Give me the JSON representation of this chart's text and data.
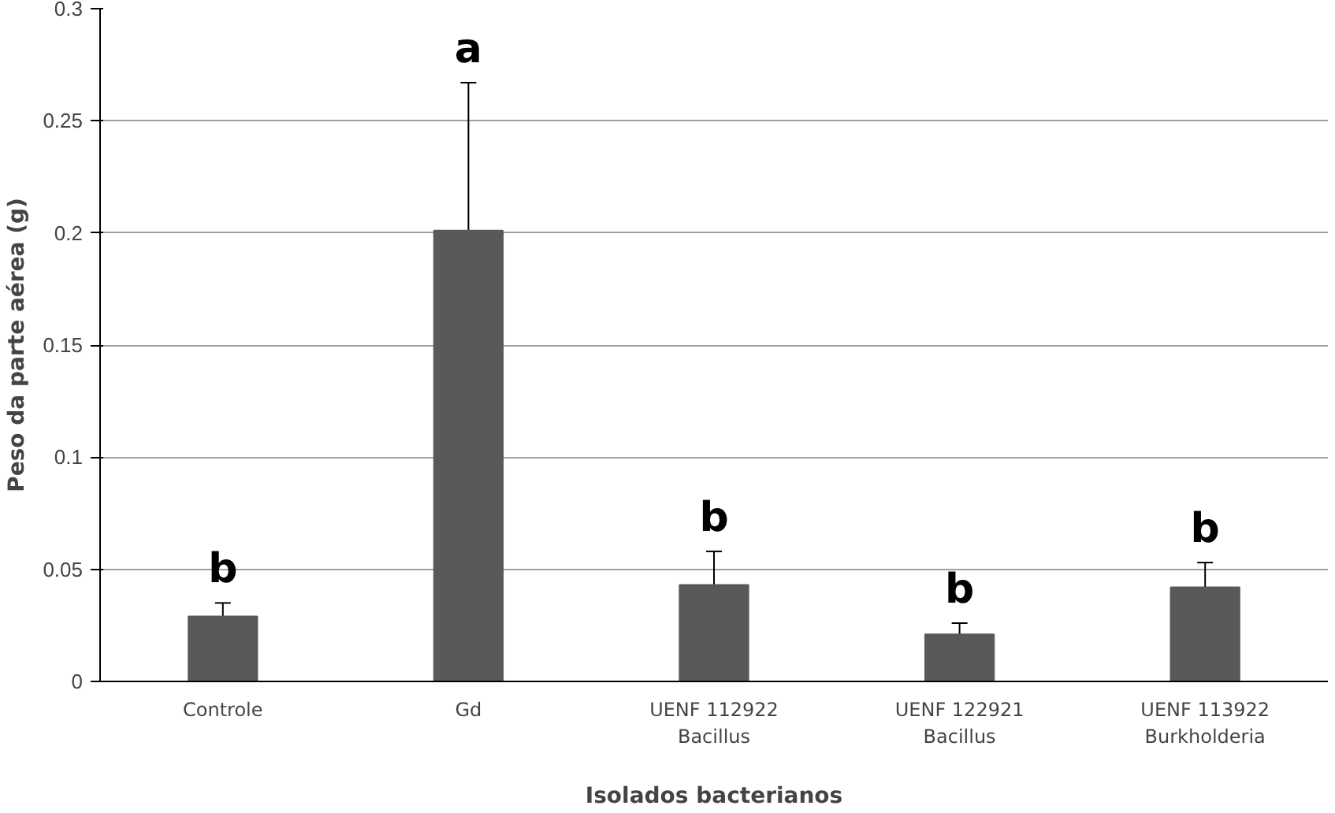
{
  "chart_data": {
    "type": "bar",
    "xlabel": "Isolados bacterianos",
    "ylabel": "Peso da parte aérea (g)",
    "categories": [
      "Controle",
      "Gd",
      "UENF 112922\nBacillus",
      "UENF 122921\nBacillus",
      "UENF 113922\nBurkholderia"
    ],
    "values": [
      0.029,
      0.201,
      0.043,
      0.021,
      0.042
    ],
    "errors": [
      0.006,
      0.066,
      0.015,
      0.005,
      0.011
    ],
    "color": "#595959",
    "ylim": [
      0,
      0.3
    ],
    "yticks": [
      {
        "value": 0,
        "label": "0"
      },
      0.05,
      0.1,
      0.15,
      0.2,
      0.25,
      0.3
    ],
    "grid": "y",
    "annotations": [
      {
        "text": "b",
        "x": "Controle",
        "y": 0.035
      },
      {
        "text": "a",
        "x": "Gd",
        "y": 0.267
      },
      {
        "text": "b",
        "x": "UENF 112922\nBacillus",
        "y": 0.058
      },
      {
        "text": "b",
        "x": "UENF 122921\nBacillus",
        "y": 0.026
      },
      {
        "text": "b",
        "x": "UENF 113922\nBurkholderia",
        "y": 0.053
      }
    ]
  }
}
